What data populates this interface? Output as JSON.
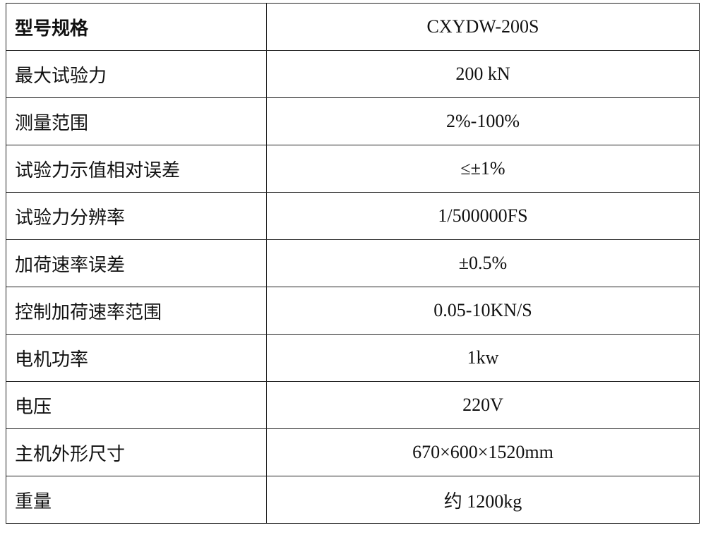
{
  "table": {
    "rows": [
      [
        "型号规格",
        "CXYDW-200S"
      ],
      [
        "最大试验力",
        "200 kN"
      ],
      [
        "测量范围",
        "2%-100%"
      ],
      [
        "试验力示值相对误差",
        "≤±1%"
      ],
      [
        "试验力分辨率",
        "1/500000FS"
      ],
      [
        "加荷速率误差",
        "±0.5%"
      ],
      [
        "控制加荷速率范围",
        "0.05-10KN/S"
      ],
      [
        "电机功率",
        "1kw"
      ],
      [
        "电压",
        "220V"
      ],
      [
        "主机外形尺寸",
        "670×600×1520mm"
      ],
      [
        "重量",
        "约 1200kg"
      ]
    ]
  }
}
